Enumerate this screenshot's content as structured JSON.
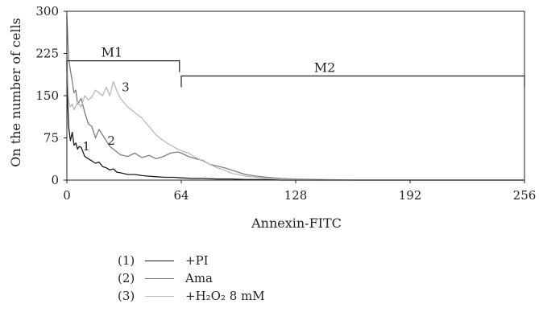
{
  "chart_data": {
    "type": "line",
    "xlabel": "Annexin-FITC",
    "ylabel": "On the number of cells",
    "xlim": [
      0,
      256
    ],
    "ylim": [
      0,
      300
    ],
    "x_ticks": [
      "0",
      "64",
      "128",
      "192",
      "256"
    ],
    "y_ticks": [
      "0",
      "75",
      "150",
      "225",
      "300"
    ],
    "gates": [
      {
        "label": "M1",
        "x_start": 0,
        "x_end": 63,
        "y": 212
      },
      {
        "label": "M2",
        "x_start": 64,
        "x_end": 256,
        "y": 185
      }
    ],
    "series": [
      {
        "name": "+PI",
        "label": "1",
        "legend_num": "(1)",
        "color": "#1a1a1a",
        "x": [
          0,
          1,
          2,
          3,
          4,
          5,
          6,
          7,
          8,
          10,
          12,
          14,
          16,
          18,
          20,
          22,
          24,
          26,
          28,
          30,
          34,
          38,
          42,
          46,
          50,
          55,
          60,
          64,
          70,
          76,
          84,
          92,
          100,
          110,
          120,
          128,
          140,
          160,
          256
        ],
        "y": [
          175,
          95,
          70,
          85,
          62,
          66,
          55,
          60,
          58,
          42,
          38,
          34,
          30,
          32,
          24,
          22,
          18,
          20,
          14,
          13,
          10,
          10,
          8,
          7,
          6,
          5,
          5,
          4,
          3,
          3,
          2,
          2,
          1,
          1,
          0,
          0,
          0,
          0,
          0
        ]
      },
      {
        "name": "Ama",
        "label": "2",
        "legend_num": "(2)",
        "color": "#7d7d7d",
        "x": [
          0,
          1,
          2,
          3,
          4,
          5,
          6,
          8,
          10,
          12,
          14,
          16,
          18,
          20,
          22,
          24,
          26,
          28,
          30,
          34,
          38,
          42,
          46,
          50,
          54,
          58,
          62,
          64,
          68,
          72,
          76,
          80,
          84,
          88,
          92,
          96,
          100,
          106,
          112,
          120,
          128,
          140,
          160,
          180,
          256
        ],
        "y": [
          290,
          215,
          195,
          175,
          155,
          160,
          135,
          145,
          120,
          100,
          95,
          75,
          90,
          80,
          70,
          60,
          55,
          50,
          45,
          42,
          48,
          40,
          44,
          38,
          42,
          48,
          50,
          48,
          42,
          38,
          35,
          28,
          25,
          22,
          18,
          14,
          10,
          7,
          5,
          3,
          2,
          1,
          0,
          0,
          0
        ]
      },
      {
        "name": "+H₂O₂ 8 mM",
        "label": "3",
        "legend_num": "(3)",
        "color": "#b8b8b8",
        "x": [
          0,
          1,
          2,
          3,
          4,
          6,
          8,
          10,
          12,
          14,
          16,
          18,
          20,
          22,
          24,
          26,
          28,
          30,
          34,
          38,
          42,
          46,
          50,
          54,
          58,
          62,
          64,
          68,
          72,
          76,
          80,
          84,
          88,
          92,
          96,
          100,
          106,
          112,
          120,
          128,
          140,
          160,
          180,
          256
        ],
        "y": [
          220,
          140,
          130,
          135,
          125,
          138,
          130,
          150,
          142,
          148,
          160,
          155,
          150,
          165,
          150,
          175,
          158,
          145,
          130,
          120,
          110,
          95,
          80,
          70,
          62,
          55,
          52,
          48,
          40,
          34,
          28,
          22,
          18,
          12,
          10,
          7,
          5,
          3,
          2,
          1,
          0,
          0,
          0,
          0
        ]
      }
    ]
  }
}
